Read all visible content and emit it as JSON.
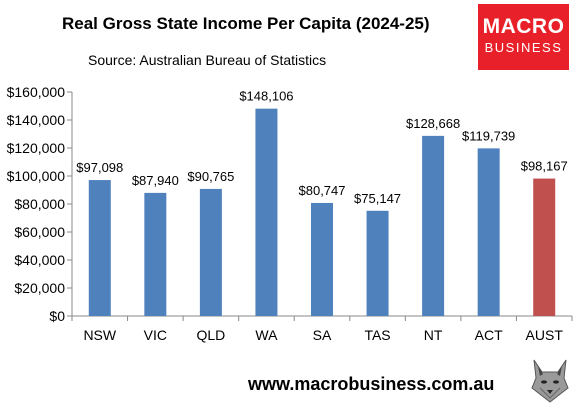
{
  "title": "Real Gross State Income Per Capita (2024-25)",
  "subtitle": "Source: Australian Bureau of Statistics",
  "logo": {
    "line1": "MACRO",
    "line2": "BUSINESS"
  },
  "footer_url": "www.macrobusiness.com.au",
  "colors": {
    "bar": "#4f81bd",
    "highlight": "#c0504d",
    "logo_bg": "#e8202a"
  },
  "chart_data": {
    "type": "bar",
    "title": "Real Gross State Income Per Capita (2024-25)",
    "categories": [
      "NSW",
      "VIC",
      "QLD",
      "WA",
      "SA",
      "TAS",
      "NT",
      "ACT",
      "AUST"
    ],
    "values": [
      97098,
      87940,
      90765,
      148106,
      80747,
      75147,
      128668,
      119739,
      98167
    ],
    "data_labels": [
      "$97,098",
      "$87,940",
      "$90,765",
      "$148,106",
      "$80,747",
      "$75,147",
      "$128,668",
      "$119,739",
      "$98,167"
    ],
    "highlight_category": "AUST",
    "ylim": [
      0,
      160000
    ],
    "yticks": [
      0,
      20000,
      40000,
      60000,
      80000,
      100000,
      120000,
      140000,
      160000
    ],
    "ytick_labels": [
      "$0",
      "$20,000",
      "$40,000",
      "$60,000",
      "$80,000",
      "$100,000",
      "$120,000",
      "$140,000",
      "$160,000"
    ],
    "xlabel": "",
    "ylabel": "",
    "grid": false,
    "legend": "none"
  }
}
